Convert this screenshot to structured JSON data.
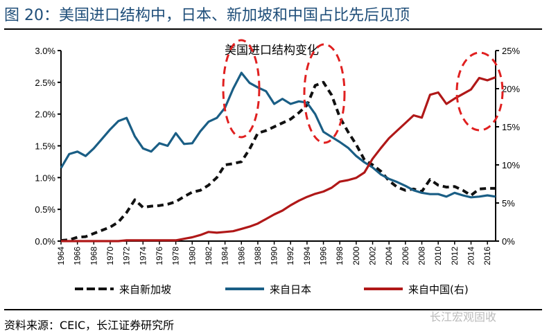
{
  "header": {
    "title": "图 20：美国进口结构中，日本、新加坡和中国占比先后见顶"
  },
  "footer": {
    "source": "资料来源：CEIC，长江证券研究所",
    "watermark": "长江宏观固收"
  },
  "chart_data": {
    "type": "line",
    "title": "美国进口结构变化",
    "x": [
      1964,
      1965,
      1966,
      1967,
      1968,
      1969,
      1970,
      1971,
      1972,
      1973,
      1974,
      1975,
      1976,
      1977,
      1978,
      1979,
      1980,
      1981,
      1982,
      1983,
      1984,
      1985,
      1986,
      1987,
      1988,
      1989,
      1990,
      1991,
      1992,
      1993,
      1994,
      1995,
      1996,
      1997,
      1998,
      1999,
      2000,
      2001,
      2002,
      2003,
      2004,
      2005,
      2006,
      2007,
      2008,
      2009,
      2010,
      2011,
      2012,
      2013,
      2014,
      2015,
      2016,
      2017
    ],
    "x_tick_labels": [
      "1964",
      "1966",
      "1968",
      "1970",
      "1972",
      "1974",
      "1976",
      "1978",
      "1980",
      "1982",
      "1984",
      "1986",
      "1988",
      "1990",
      "1992",
      "1994",
      "1996",
      "1998",
      "2000",
      "2002",
      "2004",
      "2006",
      "2008",
      "2010",
      "2012",
      "2014",
      "2016"
    ],
    "y_left": {
      "range": [
        0,
        3.0
      ],
      "tick_labels": [
        "0.0%",
        "0.5%",
        "1.0%",
        "1.5%",
        "2.0%",
        "2.5%",
        "3.0%"
      ]
    },
    "y_right": {
      "range": [
        0,
        25
      ],
      "tick_labels": [
        "0%",
        "5%",
        "10%",
        "15%",
        "20%",
        "25%"
      ]
    },
    "grid": false,
    "legend_position": "bottom",
    "series": [
      {
        "name": "来自新加坡",
        "axis": "left",
        "color": "#111111",
        "style": "dashed",
        "values": [
          0.01,
          0.02,
          0.06,
          0.07,
          0.12,
          0.17,
          0.22,
          0.3,
          0.45,
          0.65,
          0.53,
          0.55,
          0.56,
          0.58,
          0.62,
          0.7,
          0.77,
          0.8,
          0.88,
          1.0,
          1.2,
          1.22,
          1.25,
          1.45,
          1.7,
          1.74,
          1.8,
          1.86,
          1.92,
          2.02,
          2.14,
          2.45,
          2.5,
          2.3,
          1.95,
          1.72,
          1.52,
          1.28,
          1.2,
          1.1,
          0.95,
          0.85,
          0.8,
          0.82,
          0.78,
          0.97,
          0.88,
          0.85,
          0.86,
          0.8,
          0.72,
          0.82,
          0.83,
          0.83
        ]
      },
      {
        "name": "来自日本",
        "axis": "left",
        "color": "#1a5e85",
        "style": "solid",
        "values": [
          1.15,
          1.37,
          1.41,
          1.34,
          1.46,
          1.61,
          1.76,
          1.89,
          1.94,
          1.65,
          1.46,
          1.41,
          1.54,
          1.5,
          1.7,
          1.53,
          1.54,
          1.73,
          1.88,
          1.94,
          2.1,
          2.4,
          2.65,
          2.49,
          2.42,
          2.36,
          2.16,
          2.24,
          2.16,
          2.2,
          2.18,
          2.0,
          1.72,
          1.64,
          1.56,
          1.47,
          1.34,
          1.24,
          1.16,
          1.05,
          0.98,
          0.93,
          0.87,
          0.8,
          0.76,
          0.74,
          0.74,
          0.7,
          0.76,
          0.72,
          0.69,
          0.7,
          0.72,
          0.7
        ]
      },
      {
        "name": "来自中国(右)",
        "axis": "right",
        "color": "#b01818",
        "style": "solid",
        "values": [
          0,
          0,
          0,
          0,
          0,
          0,
          0,
          0,
          0.1,
          0.1,
          0.1,
          0.1,
          0.1,
          0.1,
          0.1,
          0.3,
          0.5,
          0.8,
          1.2,
          1.1,
          1.2,
          1.3,
          1.6,
          1.9,
          2.3,
          2.9,
          3.5,
          4.0,
          4.7,
          5.3,
          5.8,
          6.2,
          6.5,
          7.0,
          7.8,
          8.0,
          8.3,
          9.0,
          10.8,
          12.2,
          13.5,
          14.5,
          15.5,
          16.5,
          16.2,
          19.2,
          19.5,
          18.0,
          18.7,
          19.3,
          19.9,
          21.4,
          21.1,
          21.5
        ]
      }
    ],
    "annotations": {
      "highlight_color": "#e02020",
      "highlight_years": [
        1986,
        1996,
        2015
      ]
    }
  }
}
